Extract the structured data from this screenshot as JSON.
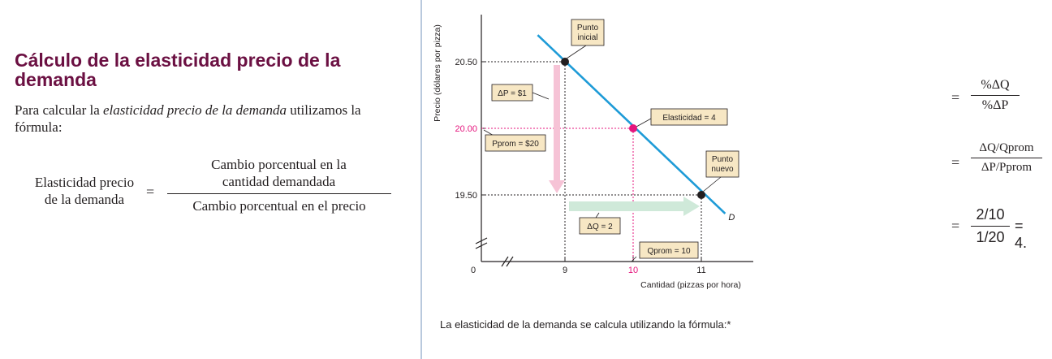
{
  "heading": "Cálculo de la elasticidad precio de la demanda",
  "intro": {
    "before": "Para calcular la ",
    "italic": "elasticidad precio de la demanda",
    "after": " utilizamos la fórmula:"
  },
  "formula": {
    "label_line1": "Elasticidad precio",
    "label_line2": "de la demanda",
    "equals": "=",
    "numerator_line1": "Cambio porcentual en la",
    "numerator_line2": "cantidad demandada",
    "denominator": "Cambio porcentual en el precio"
  },
  "chart_data": {
    "type": "line",
    "xlabel": "Cantidad (pizzas por hora)",
    "ylabel": "Precio (dólares por pizza)",
    "x_ticks": [
      "0",
      "9",
      "10",
      "11"
    ],
    "y_ticks": [
      "19.50",
      "20.00",
      "20.50"
    ],
    "axis_breaks": true,
    "series": [
      {
        "name": "D",
        "x": [
          8.6,
          11.35
        ],
        "y": [
          20.7,
          19.36
        ]
      }
    ],
    "points": [
      {
        "x": 9,
        "y": 20.5,
        "label": "Punto inicial"
      },
      {
        "x": 10,
        "y": 20.0,
        "label": "Elasticidad = 4"
      },
      {
        "x": 11,
        "y": 19.5,
        "label": "Punto nuevo"
      }
    ],
    "annotations": {
      "delta_p": "ΔP = $1",
      "p_prom": "Pprom = $20",
      "delta_q": "ΔQ = 2",
      "q_prom": "Qprom = 10"
    },
    "colors": {
      "curve": "#1e9bd7",
      "highlight": "#e5157d",
      "delta_p_arrow": "#f6c3d6",
      "delta_q_arrow": "#cfe9d9",
      "label_box": "#f7e7c4"
    }
  },
  "caption": "La elasticidad de la demanda se calcula utilizando la fórmula:*",
  "rhs": {
    "eq1_num": "%ΔQ",
    "eq1_den": "%ΔP",
    "eq2_num": "ΔQ/Qprom",
    "eq2_den": "ΔP/Pprom",
    "eq3_num": "2/10",
    "eq3_den": "1/20",
    "eq3_result": "= 4.",
    "equals": "="
  }
}
